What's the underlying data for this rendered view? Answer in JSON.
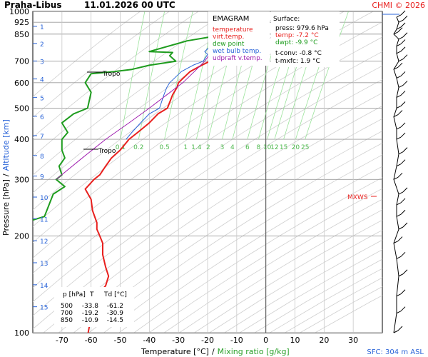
{
  "header": {
    "station": "Praha-Libus",
    "datetime": "11.01.2026 00 UTC",
    "credit": "CHMI © 2026"
  },
  "legend": {
    "title": "EMAGRAM",
    "items": [
      {
        "label": "temperature",
        "color": "#e8201e"
      },
      {
        "label": "virt.temp.",
        "color": "#e8201e"
      },
      {
        "label": "dew point",
        "color": "#1e9c1e"
      },
      {
        "label": "wet bulb temp.",
        "color": "#2a64d8"
      },
      {
        "label": "udpraft v.temp.",
        "color": "#a020b0"
      }
    ]
  },
  "surface": {
    "title": "Surface:",
    "press": "press: 979.6 hPa",
    "temp": "temp: -7.2 °C",
    "dwpt": "dwpt: -9.9 °C",
    "tconv": "t-conv: -0.8 °C",
    "tmxfc": "t-mxfc: 1.9 °C",
    "colors": {
      "press": "#000000",
      "temp": "#e8201e",
      "dwpt": "#1e9c1e",
      "tconv": "#000000",
      "tmxfc": "#000000"
    }
  },
  "table": {
    "headers": [
      "p [hPa]",
      "T",
      "Td [°C]"
    ],
    "rows": [
      [
        "500",
        "-33.8",
        "-61.2"
      ],
      [
        "700",
        "-19.2",
        "-30.9"
      ],
      [
        "850",
        "-10.9",
        "-14.5"
      ]
    ]
  },
  "labels": {
    "ylabel_pressure": "Pressure [hPa]",
    "ylabel_sep": "/",
    "ylabel_altitude": "Altitude [km]",
    "xlabel_temp": "Temperature [°C]",
    "xlabel_sep": "/",
    "xlabel_mix": "Mixing ratio [g/kg]",
    "sfc": "SFC: 304 m ASL",
    "tropo1": "Tropo",
    "tropo2": "Tropo",
    "mxws": "MXWS"
  },
  "chart_data": {
    "type": "line",
    "diagram": "emagram",
    "x_axis": {
      "label": "Temperature [°C]",
      "range": [
        -80,
        40
      ],
      "ticks": [
        -70,
        -60,
        -50,
        -40,
        -30,
        -20,
        -10,
        0,
        10,
        20,
        30
      ]
    },
    "y_axis": {
      "label": "Pressure [hPa]",
      "scale": "log",
      "range": [
        1000,
        100
      ],
      "ticks": [
        100,
        200,
        300,
        400,
        500,
        600,
        700,
        850,
        925,
        1000
      ]
    },
    "altitude_ticks_km": [
      1,
      2,
      3,
      4,
      5,
      6,
      7,
      8,
      9,
      10,
      11,
      12,
      13,
      14,
      15
    ],
    "mixing_ratio_labels": [
      "0.1",
      "0.2",
      "0.5",
      "1",
      "1.4",
      "2",
      "3",
      "4",
      "6",
      "8",
      "10",
      "12",
      "15",
      "20",
      "25"
    ],
    "mixing_ratio_values": [
      0.1,
      0.2,
      0.5,
      1,
      1.4,
      2,
      3,
      4,
      6,
      8,
      10,
      12,
      15,
      20,
      25
    ],
    "series": [
      {
        "name": "temperature",
        "color": "#e8201e",
        "points": [
          [
            -7.2,
            979.6
          ],
          [
            -7.5,
            960
          ],
          [
            -7.0,
            940
          ],
          [
            -9.5,
            925
          ],
          [
            -12,
            900
          ],
          [
            -13,
            880
          ],
          [
            -12,
            860
          ],
          [
            -10.9,
            850
          ],
          [
            -13.5,
            820
          ],
          [
            -16.5,
            780
          ],
          [
            -18.5,
            750
          ],
          [
            -17,
            735
          ],
          [
            -19.2,
            700
          ],
          [
            -22,
            680
          ],
          [
            -26,
            650
          ],
          [
            -30,
            600
          ],
          [
            -30.5,
            580
          ],
          [
            -32,
            550
          ],
          [
            -33.8,
            500
          ],
          [
            -37,
            480
          ],
          [
            -40,
            450
          ],
          [
            -44,
            420
          ],
          [
            -47,
            400
          ],
          [
            -50,
            370
          ],
          [
            -53,
            350
          ],
          [
            -55,
            330
          ],
          [
            -57,
            310
          ],
          [
            -59,
            300
          ],
          [
            -62,
            280
          ],
          [
            -60,
            260
          ],
          [
            -59.5,
            240
          ],
          [
            -58,
            220
          ],
          [
            -58,
            210
          ],
          [
            -57,
            200
          ],
          [
            -56,
            190
          ],
          [
            -56,
            175
          ],
          [
            -55,
            160
          ],
          [
            -54,
            150
          ],
          [
            -55,
            140
          ],
          [
            -56.5,
            135
          ],
          [
            -58.5,
            130
          ],
          [
            -58,
            120
          ],
          [
            -60,
            112
          ],
          [
            -61,
            100
          ]
        ]
      },
      {
        "name": "virt.temp.",
        "color": "#e8201e",
        "points": [
          [
            -6.9,
            979.6
          ],
          [
            -7.2,
            960
          ],
          [
            -6.7,
            940
          ],
          [
            -9.2,
            925
          ],
          [
            -11.7,
            900
          ],
          [
            -12.7,
            880
          ],
          [
            -11.7,
            860
          ],
          [
            -10.6,
            850
          ],
          [
            -13.2,
            820
          ],
          [
            -16.2,
            780
          ],
          [
            -18.2,
            750
          ],
          [
            -16.8,
            735
          ],
          [
            -19.0,
            700
          ]
        ]
      },
      {
        "name": "dew point",
        "color": "#1e9c1e",
        "points": [
          [
            -9.9,
            979.6
          ],
          [
            -10,
            960
          ],
          [
            -9.5,
            940
          ],
          [
            -13,
            925
          ],
          [
            -14,
            900
          ],
          [
            -15,
            880
          ],
          [
            -14.5,
            850
          ],
          [
            -20,
            830
          ],
          [
            -27,
            810
          ],
          [
            -40,
            750
          ],
          [
            -32,
            745
          ],
          [
            -33,
            728
          ],
          [
            -30.9,
            700
          ],
          [
            -40,
            680
          ],
          [
            -46,
            660
          ],
          [
            -52,
            650
          ],
          [
            -60,
            640
          ],
          [
            -62,
            600
          ],
          [
            -60,
            560
          ],
          [
            -61.2,
            500
          ],
          [
            -66,
            480
          ],
          [
            -70,
            450
          ],
          [
            -68,
            420
          ],
          [
            -70,
            400
          ],
          [
            -70,
            370
          ],
          [
            -69,
            350
          ],
          [
            -71,
            330
          ],
          [
            -70,
            310
          ],
          [
            -72,
            300
          ],
          [
            -69,
            285
          ],
          [
            -73,
            270
          ],
          [
            -76,
            230
          ],
          [
            -83,
            220
          ]
        ]
      },
      {
        "name": "wet bulb temp.",
        "color": "#2a64d8",
        "points": [
          [
            -8.2,
            979.6
          ],
          [
            -8.4,
            960
          ],
          [
            -8.0,
            940
          ],
          [
            -10.8,
            925
          ],
          [
            -12.8,
            900
          ],
          [
            -13.8,
            880
          ],
          [
            -13.2,
            860
          ],
          [
            -12.2,
            850
          ],
          [
            -15.5,
            820
          ],
          [
            -19,
            780
          ],
          [
            -21,
            750
          ],
          [
            -20,
            735
          ],
          [
            -21.5,
            700
          ],
          [
            -25,
            680
          ],
          [
            -29,
            650
          ],
          [
            -33,
            600
          ],
          [
            -34,
            580
          ],
          [
            -35,
            550
          ],
          [
            -36.5,
            500
          ],
          [
            -40,
            480
          ],
          [
            -43,
            450
          ],
          [
            -46,
            420
          ],
          [
            -48,
            400
          ]
        ]
      },
      {
        "name": "udpraft v.temp.",
        "color": "#a020b0",
        "points": [
          [
            -12,
            900
          ],
          [
            -13.5,
            850
          ],
          [
            -16,
            800
          ],
          [
            -18.5,
            750
          ],
          [
            -21,
            700
          ],
          [
            -24.5,
            650
          ],
          [
            -28.5,
            600
          ],
          [
            -34,
            550
          ],
          [
            -40,
            500
          ],
          [
            -47,
            450
          ],
          [
            -55,
            400
          ],
          [
            -63,
            350
          ],
          [
            -72,
            300
          ]
        ]
      }
    ]
  }
}
